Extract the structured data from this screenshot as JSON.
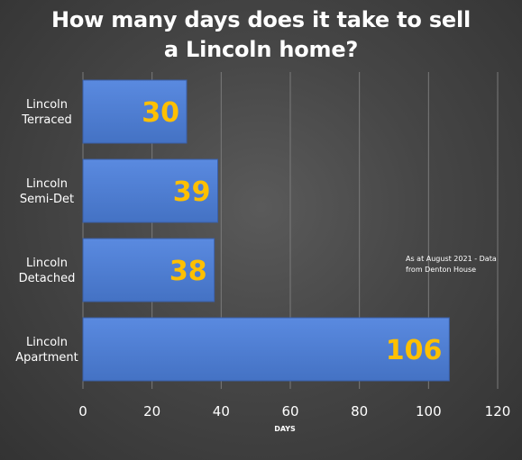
{
  "colors": {
    "background": "#444444",
    "bar": "#4472c4",
    "bar_light": "#5a8ae0",
    "data_label": "#ffc000",
    "text": "#ffffff",
    "gridline": "#7a7a7a"
  },
  "chart_data": {
    "type": "bar",
    "orientation": "horizontal",
    "title_lines": [
      "How many days does it take to sell",
      "a Lincoln home?"
    ],
    "categories": [
      [
        "Lincoln",
        "Terraced"
      ],
      [
        "Lincoln",
        "Semi-Det"
      ],
      [
        "Lincoln",
        "Detached"
      ],
      [
        "Lincoln",
        "Apartment"
      ]
    ],
    "values": [
      30,
      39,
      38,
      106
    ],
    "xlabel": "DAYS",
    "ylabel": "",
    "xlim": [
      0,
      120
    ],
    "xticks": [
      0,
      20,
      40,
      60,
      80,
      100,
      120
    ],
    "grid": true,
    "annotation": [
      "As at August 2021 - Data",
      "from Denton House"
    ]
  }
}
